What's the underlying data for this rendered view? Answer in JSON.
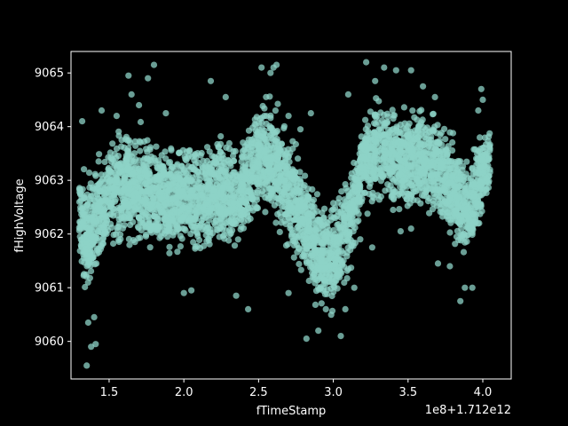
{
  "chart_data": {
    "type": "scatter",
    "title": "",
    "xlabel": "fTimeStamp",
    "ylabel": "fHighVoltage",
    "x_offset_label": "1e8+1.712e12",
    "xlim": [
      1.245,
      4.19
    ],
    "ylim": [
      9059.3,
      9065.4
    ],
    "x_ticks": [
      1.5,
      2.0,
      2.5,
      3.0,
      3.5,
      4.0
    ],
    "x_tick_labels": [
      "1.5",
      "2.0",
      "2.5",
      "3.0",
      "3.5",
      "4.0"
    ],
    "y_ticks": [
      9060,
      9061,
      9062,
      9063,
      9064,
      9065
    ],
    "y_tick_labels": [
      "9060",
      "9061",
      "9062",
      "9063",
      "9064",
      "9065"
    ],
    "grid": false,
    "marker_color": "#8dd3c7",
    "background_color": "#000000",
    "axes_color": "#ffffff",
    "series": [
      {
        "name": "fHighVoltage",
        "band_profile": {
          "x": [
            1.3,
            1.35,
            1.4,
            1.45,
            1.5,
            1.6,
            1.7,
            1.8,
            1.9,
            2.0,
            2.1,
            2.2,
            2.3,
            2.4,
            2.5,
            2.55,
            2.6,
            2.65,
            2.7,
            2.75,
            2.8,
            2.85,
            2.9,
            2.95,
            3.0,
            3.05,
            3.1,
            3.15,
            3.2,
            3.3,
            3.4,
            3.5,
            3.6,
            3.7,
            3.75,
            3.8,
            3.85,
            3.9,
            3.95,
            4.0,
            4.05
          ],
          "low": [
            9061.4,
            9060.8,
            9060.9,
            9061.2,
            9061.6,
            9061.7,
            9061.6,
            9061.5,
            9061.5,
            9061.6,
            9061.5,
            9061.6,
            9061.5,
            9061.8,
            9062.3,
            9062.3,
            9062.1,
            9061.9,
            9061.6,
            9061.5,
            9061.2,
            9060.9,
            9060.6,
            9060.4,
            9060.5,
            9060.7,
            9061.1,
            9061.7,
            9062.4,
            9062.5,
            9062.4,
            9062.3,
            9062.4,
            9062.3,
            9062.0,
            9061.7,
            9061.5,
            9061.4,
            9061.7,
            9062.3,
            9062.7
          ],
          "high": [
            9063.3,
            9063.2,
            9063.4,
            9063.6,
            9063.8,
            9064.1,
            9064.0,
            9063.9,
            9063.8,
            9063.7,
            9063.8,
            9063.9,
            9063.8,
            9063.9,
            9064.6,
            9064.7,
            9064.5,
            9064.2,
            9063.9,
            9063.7,
            9063.3,
            9063.0,
            9062.8,
            9062.6,
            9062.7,
            9062.9,
            9063.3,
            9063.8,
            9064.3,
            9064.6,
            9064.6,
            9064.5,
            9064.4,
            9064.3,
            9064.1,
            9063.9,
            9063.7,
            9063.6,
            9063.7,
            9064.0,
            9064.1
          ]
        },
        "outliers": [
          [
            1.32,
            9064.1
          ],
          [
            1.35,
            9059.55
          ],
          [
            1.38,
            9059.9
          ],
          [
            1.41,
            9059.95
          ],
          [
            1.4,
            9060.45
          ],
          [
            1.36,
            9060.35
          ],
          [
            1.45,
            9064.3
          ],
          [
            1.55,
            9064.2
          ],
          [
            1.63,
            9064.95
          ],
          [
            1.65,
            9064.6
          ],
          [
            1.7,
            9064.4
          ],
          [
            1.76,
            9064.9
          ],
          [
            1.8,
            9065.15
          ],
          [
            1.88,
            9064.25
          ],
          [
            2.0,
            9060.9
          ],
          [
            2.05,
            9060.95
          ],
          [
            2.18,
            9064.85
          ],
          [
            2.28,
            9064.55
          ],
          [
            2.35,
            9060.85
          ],
          [
            2.43,
            9060.6
          ],
          [
            2.52,
            9065.1
          ],
          [
            2.58,
            9065.0
          ],
          [
            2.6,
            9065.1
          ],
          [
            2.62,
            9065.15
          ],
          [
            2.7,
            9064.2
          ],
          [
            2.78,
            9063.95
          ],
          [
            2.85,
            9064.25
          ],
          [
            2.7,
            9060.9
          ],
          [
            2.82,
            9060.05
          ],
          [
            2.9,
            9060.2
          ],
          [
            2.95,
            9060.6
          ],
          [
            3.05,
            9060.1
          ],
          [
            3.08,
            9060.6
          ],
          [
            3.14,
            9061.0
          ],
          [
            3.18,
            9061.9
          ],
          [
            3.1,
            9064.6
          ],
          [
            3.22,
            9065.2
          ],
          [
            3.28,
            9064.85
          ],
          [
            3.34,
            9065.1
          ],
          [
            3.42,
            9065.05
          ],
          [
            3.52,
            9065.05
          ],
          [
            3.6,
            9064.75
          ],
          [
            3.68,
            9064.55
          ],
          [
            3.7,
            9061.45
          ],
          [
            3.78,
            9061.4
          ],
          [
            3.85,
            9060.75
          ],
          [
            3.88,
            9061.0
          ],
          [
            3.93,
            9061.0
          ],
          [
            3.97,
            9064.3
          ],
          [
            3.99,
            9064.7
          ],
          [
            4.0,
            9064.5
          ],
          [
            3.45,
            9062.05
          ],
          [
            3.52,
            9062.1
          ],
          [
            3.26,
            9061.75
          ],
          [
            3.4,
            9062.45
          ]
        ]
      }
    ]
  }
}
